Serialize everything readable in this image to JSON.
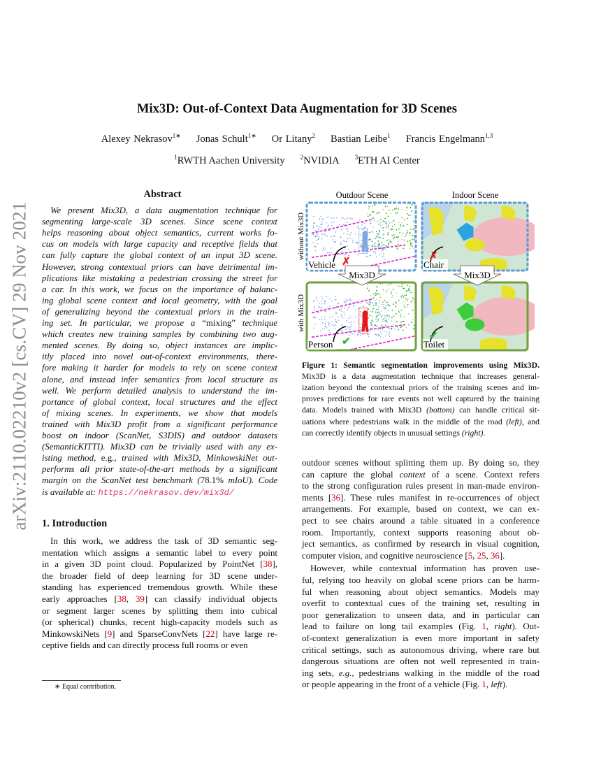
{
  "sidebar_arxiv": "arXiv:2110.02210v2  [cs.CV]  29 Nov 2021",
  "title": "Mix3D: Out-of-Context Data Augmentation for 3D Scenes",
  "authors": [
    {
      "name": "Alexey Nekrasov",
      "sup": "1∗"
    },
    {
      "name": "Jonas Schult",
      "sup": "1∗"
    },
    {
      "name": "Or Litany",
      "sup": "2"
    },
    {
      "name": "Bastian Leibe",
      "sup": "1"
    },
    {
      "name": "Francis Engelmann",
      "sup": "1,3"
    }
  ],
  "affiliations": [
    {
      "sup": "1",
      "name": "RWTH Aachen University"
    },
    {
      "sup": "2",
      "name": "NVIDIA"
    },
    {
      "sup": "3",
      "name": "ETH AI Center"
    }
  ],
  "abstract": {
    "heading": "Abstract",
    "lines": [
      "We present Mix3D, a data augmentation technique for",
      "segmenting large-scale 3D scenes.  Since scene context",
      "helps reasoning about object semantics, current works fo-",
      "cus on models with large capacity and receptive fields that",
      "can fully capture the global context of an input 3D scene.",
      "However, strong contextual priors can have detrimental im-",
      "plications like mistaking a pedestrian crossing the street for",
      "a car.  In this work, we focus on the importance of balanc-",
      "ing global scene context and local geometry, with the goal",
      "of generalizing beyond the contextual priors in the train-",
      "ing set.  In particular, we propose a “mixing” technique",
      "which creates new training samples by combining two aug-",
      "mented scenes.  By doing so, object instances are implic-",
      "itly placed into novel out-of-context environments, there-",
      "fore making it harder for models to rely on scene context",
      "alone, and instead infer semantics from local structure as",
      "well.  We perform detailed analysis to understand the im-",
      "portance of global context, local structures and the effect",
      "of mixing scenes.  In experiments, we show that models",
      "trained with Mix3D profit from a significant performance",
      "boost on indoor (ScanNet, S3DIS) and outdoor datasets",
      "(SemanticKITTI). Mix3D can be trivially used with any ex-",
      "isting method, e.g., trained with Mix3D, MinkowskiNet out-",
      "performs all prior state-of-the-art methods by a significant",
      "margin on the ScanNet test benchmark (78.1% mIoU). Code",
      "is available at: "
    ],
    "url": "https://nekrasov.dev/mix3d/"
  },
  "intro": {
    "heading": "1. Introduction",
    "lines": [
      "In this work, we address the task of 3D semantic seg-",
      "mentation which assigns a semantic label to every point",
      "in a given 3D point cloud.  Popularized by PointNet [38],",
      "the broader field of deep learning for 3D scene under-",
      "standing has experienced tremendous growth.  While these",
      "early approaches [38, 39] can classify individual objects",
      "or segment larger scenes by splitting them into cubical",
      "(or spherical) chunks, recent high-capacity models such as",
      "MinkowskiNets [9] and SparseConvNets [22] have large re-",
      "ceptive fields and can directly process full rooms or even"
    ],
    "footnote": "∗ Equal contribution."
  },
  "figure": {
    "col_titles": [
      "Outdoor Scene",
      "Indoor Scene"
    ],
    "row_labels": [
      "without Mix3D",
      "with Mix3D"
    ],
    "arrow_label": "Mix3D",
    "panel_labels": [
      "Vehicle",
      "Chair",
      "Person",
      "Toilet"
    ],
    "marks": [
      "✗",
      "✗",
      "✔",
      "✔"
    ],
    "colors": {
      "without_border": "#5b9bd5",
      "with_border": "#70a03c",
      "wrong": "#e02020",
      "right": "#3cb043",
      "person": "#e81818",
      "toilet": "#3ccc3c",
      "chair": "#e6e22a",
      "table": "#f2b8c0",
      "points": "#7fa8e0",
      "road": "#e020d0"
    }
  },
  "caption": {
    "lines": [
      "Figure 1: Semantic segmentation improvements using Mix3D.",
      "Mix3D is a data augmentation technique that increases general-",
      "ization beyond the contextual priors of the training scenes and im-",
      "proves predictions for rare events not well captured by the training",
      "data. Models trained with Mix3D (bottom) can handle critical sit-",
      "uations where pedestrians walk in the middle of the road (left), and",
      "can correctly identify objects in unusual settings (right)."
    ]
  },
  "right_text": {
    "paragraphs": [
      [
        "outdoor scenes without splitting them up. By doing so, they",
        "can capture the global context of a scene.  Context refers",
        "to the strong configuration rules present in man-made environ-",
        "ments [36]. These rules manifest in re-occurrences of object",
        "arrangements.  For example, based on context, we can ex-",
        "pect to see chairs around a table situated in a conference",
        "room.  Importantly, context supports reasoning about ob-",
        "ject semantics, as confirmed by research in visual cognition,",
        "computer vision, and cognitive neuroscience [5, 25, 36]."
      ],
      [
        "However, while contextual information has proven use-",
        "ful, relying too heavily on global scene priors can be harm-",
        "ful when reasoning about object semantics.  Models may",
        "overfit to contextual cues of the training set, resulting in",
        "poor generalization to unseen data, and in particular can",
        "lead to failure on long tail examples (Fig. 1,  right).  Out-",
        "of-context generalization is even more important in safety",
        "critical settings, such as autonomous driving, where rare but",
        "dangerous situations are often not well represented in train-",
        "ing sets, e.g., pedestrians walking in the middle of the road",
        "or people appearing in the front of a vehicle (Fig. 1, left)."
      ]
    ]
  }
}
